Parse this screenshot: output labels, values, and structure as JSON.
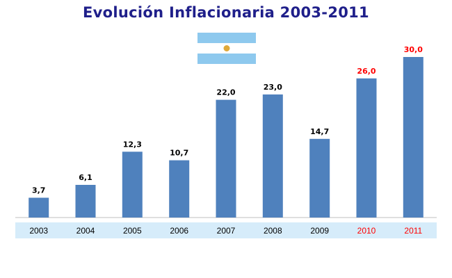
{
  "colors": {
    "title": "#1f1f8a",
    "bar": "#4f81bd",
    "label_normal": "#000000",
    "label_highlight": "#ff0000",
    "axis_band": "#d6ecfa",
    "flag_blue": "#8ec9ee",
    "flag_white": "#ffffff",
    "flag_sun": "#e0a93a"
  },
  "flag": {
    "icon": "argentina-flag-icon"
  },
  "chart_data": {
    "type": "bar",
    "title": "Evolución Inflacionaria 2003-2011",
    "xlabel": "",
    "ylabel": "",
    "categories": [
      "2003",
      "2004",
      "2005",
      "2006",
      "2007",
      "2008",
      "2009",
      "2010",
      "2011"
    ],
    "values": [
      3.7,
      6.1,
      12.3,
      10.7,
      22.0,
      23.0,
      14.7,
      26.0,
      30.0
    ],
    "value_labels": [
      "3,7",
      "6,1",
      "12,3",
      "10,7",
      "22,0",
      "23,0",
      "14,7",
      "26,0",
      "30,0"
    ],
    "highlighted_categories": [
      "2010",
      "2011"
    ],
    "ylim": [
      0,
      30
    ],
    "grid": false,
    "legend": "none"
  }
}
